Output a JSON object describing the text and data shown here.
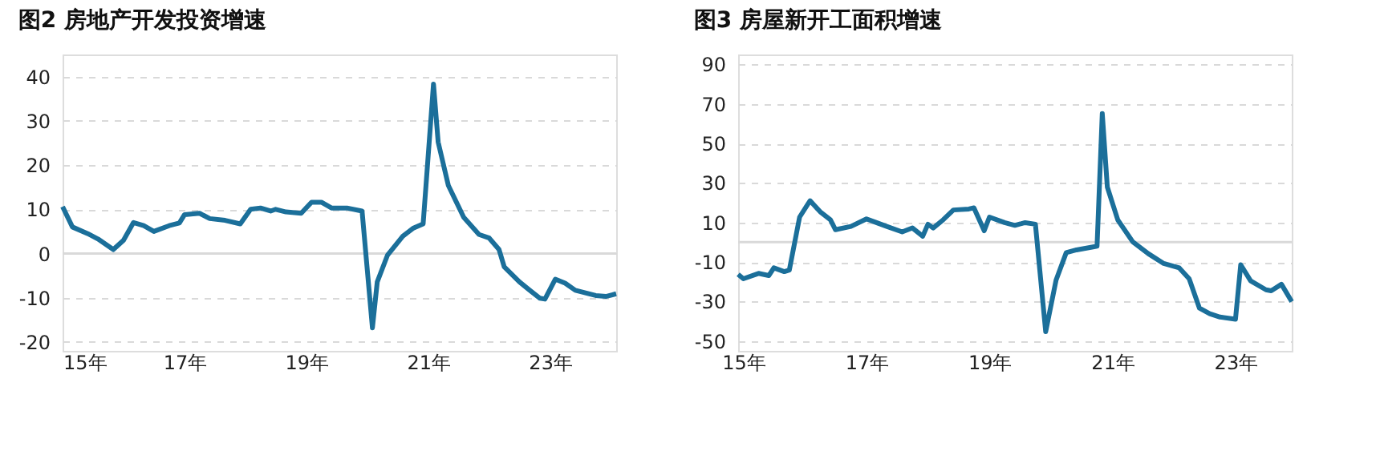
{
  "chart_data": [
    {
      "type": "line",
      "title": "图2 房地产开发投资增速",
      "xlim": [
        "2015-01",
        "2024-02"
      ],
      "xticks": [
        {
          "value": "2015",
          "label": "15年"
        },
        {
          "value": "2017",
          "label": "17年"
        },
        {
          "value": "2019",
          "label": "19年"
        },
        {
          "value": "2021",
          "label": "21年"
        },
        {
          "value": "2023",
          "label": "23年"
        }
      ],
      "ylim": [
        -22,
        45
      ],
      "yticks": [
        -20,
        -10,
        0,
        10,
        20,
        30,
        40
      ],
      "grid": "y",
      "line_style": "solid",
      "ref_lines": [
        {
          "axis": "y",
          "value": 0,
          "color": "#d9d9d9"
        }
      ],
      "series": [
        {
          "color": "#1b6f9a",
          "x": [
            "2015-01",
            "2015-03",
            "2015-06",
            "2015-08",
            "2015-11",
            "2016-01",
            "2016-03",
            "2016-05",
            "2016-07",
            "2016-10",
            "2016-12",
            "2017-01",
            "2017-04",
            "2017-06",
            "2017-09",
            "2017-12",
            "2018-02",
            "2018-04",
            "2018-06",
            "2018-07",
            "2018-09",
            "2018-12",
            "2019-02",
            "2019-04",
            "2019-06",
            "2019-09",
            "2019-12",
            "2020-02",
            "2020-03",
            "2020-05",
            "2020-08",
            "2020-10",
            "2020-12",
            "2021-02",
            "2021-03",
            "2021-05",
            "2021-08",
            "2021-11",
            "2022-01",
            "2022-03",
            "2022-04",
            "2022-07",
            "2022-09",
            "2022-11",
            "2022-12",
            "2023-02",
            "2023-04",
            "2023-06",
            "2023-10",
            "2023-12",
            "2024-02"
          ],
          "values": [
            10.6,
            6,
            4.5,
            3.3,
            0.9,
            3,
            7,
            6.3,
            5,
            6.3,
            6.9,
            8.8,
            9.1,
            7.9,
            7.5,
            6.7,
            10,
            10.3,
            9.6,
            10,
            9.4,
            9.1,
            11.6,
            11.6,
            10.3,
            10.3,
            9.6,
            -16.8,
            -6.4,
            -0.4,
            3.9,
            5.7,
            6.7,
            38.3,
            25.2,
            15.4,
            8.2,
            4.3,
            3.5,
            0.9,
            -3,
            -6.4,
            -8.3,
            -10.1,
            -10.3,
            -5.8,
            -6.7,
            -8.3,
            -9.5,
            -9.7,
            -9.1
          ]
        }
      ]
    },
    {
      "type": "line",
      "title": "图3 房屋新开工面积增速",
      "xlim": [
        "2014-12",
        "2023-12"
      ],
      "xticks": [
        {
          "value": "2015",
          "label": "15年"
        },
        {
          "value": "2017",
          "label": "17年"
        },
        {
          "value": "2019",
          "label": "19年"
        },
        {
          "value": "2021",
          "label": "21年"
        },
        {
          "value": "2023",
          "label": "23年"
        }
      ],
      "ylim": [
        -55,
        95
      ],
      "yticks": [
        -50,
        -30,
        -10,
        10,
        30,
        50,
        70,
        90
      ],
      "grid": "y",
      "line_style": "solid",
      "ref_lines": [
        {
          "axis": "y",
          "value": 0,
          "color": "#d9d9d9"
        }
      ],
      "series": [
        {
          "color": "#1b6f9a",
          "x": [
            "2014-12",
            "2015-01",
            "2015-04",
            "2015-06",
            "2015-07",
            "2015-09",
            "2015-10",
            "2015-12",
            "2016-02",
            "2016-04",
            "2016-06",
            "2016-07",
            "2016-10",
            "2017-01",
            "2017-03",
            "2017-05",
            "2017-08",
            "2017-10",
            "2017-12",
            "2018-01",
            "2018-02",
            "2018-04",
            "2018-06",
            "2018-09",
            "2018-10",
            "2018-12",
            "2019-01",
            "2019-04",
            "2019-06",
            "2019-08",
            "2019-10",
            "2019-12",
            "2020-02",
            "2020-04",
            "2020-06",
            "2020-09",
            "2020-10",
            "2020-11",
            "2020-12",
            "2021-02",
            "2021-05",
            "2021-08",
            "2021-11",
            "2022-02",
            "2022-04",
            "2022-06",
            "2022-08",
            "2022-10",
            "2023-01",
            "2023-02",
            "2023-04",
            "2023-07",
            "2023-08",
            "2023-10",
            "2023-12"
          ],
          "values": [
            -16.3,
            -18.5,
            -15.8,
            -16.9,
            -13,
            -14.9,
            -14.1,
            12.7,
            21,
            15.4,
            11.3,
            6.3,
            8,
            11.8,
            9.9,
            8,
            5.2,
            7.2,
            3,
            9.1,
            7.2,
            11.3,
            16.3,
            16.8,
            17.4,
            5.8,
            12.7,
            9.9,
            8.5,
            9.9,
            9.1,
            -45.3,
            -19.1,
            -5.3,
            -3.9,
            -2.5,
            -2,
            65.1,
            27.9,
            11.3,
            0.2,
            -5.8,
            -10.8,
            -13,
            -18.5,
            -33.4,
            -36.2,
            -37.9,
            -39,
            -11.4,
            -19.6,
            -24.1,
            -24.6,
            -21.3,
            -30.1
          ]
        }
      ]
    }
  ]
}
